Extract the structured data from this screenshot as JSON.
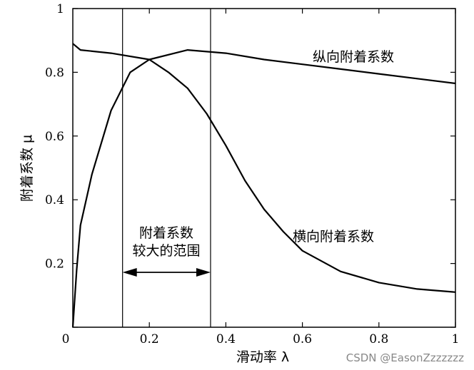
{
  "chart_data": {
    "type": "line",
    "xlabel": "滑动率 λ",
    "ylabel": "附着系数 μ",
    "xlim": [
      0,
      1
    ],
    "ylim": [
      0,
      1
    ],
    "x_ticks": [
      {
        "value": 0.2,
        "label": "0.2"
      },
      {
        "value": 0.4,
        "label": "0.4"
      },
      {
        "value": 0.6,
        "label": "0.6"
      },
      {
        "value": 0.8,
        "label": "0.8"
      },
      {
        "value": 1.0,
        "label": "1"
      }
    ],
    "y_ticks": [
      {
        "value": 0,
        "label": "0"
      },
      {
        "value": 0.2,
        "label": "0.2"
      },
      {
        "value": 0.4,
        "label": "0.4"
      },
      {
        "value": 0.6,
        "label": "0.6"
      },
      {
        "value": 0.8,
        "label": "0.8"
      },
      {
        "value": 1.0,
        "label": "1"
      }
    ],
    "series": [
      {
        "name": "纵向附着系数",
        "x": [
          0,
          0.01,
          0.02,
          0.05,
          0.1,
          0.15,
          0.2,
          0.3,
          0.4,
          0.5,
          0.6,
          0.7,
          0.8,
          0.9,
          1.0
        ],
        "y": [
          0.0,
          0.18,
          0.32,
          0.48,
          0.68,
          0.8,
          0.84,
          0.87,
          0.86,
          0.84,
          0.825,
          0.81,
          0.795,
          0.78,
          0.765
        ]
      },
      {
        "name": "横向附着系数",
        "x": [
          0,
          0.02,
          0.1,
          0.2,
          0.25,
          0.3,
          0.35,
          0.4,
          0.45,
          0.5,
          0.55,
          0.6,
          0.7,
          0.8,
          0.9,
          1.0
        ],
        "y": [
          0.89,
          0.87,
          0.86,
          0.84,
          0.8,
          0.75,
          0.67,
          0.57,
          0.46,
          0.37,
          0.3,
          0.24,
          0.175,
          0.14,
          0.12,
          0.11
        ]
      }
    ],
    "region": {
      "x_start": 0.13,
      "x_end": 0.36,
      "label_lines": [
        "附着系数",
        "较大的范围"
      ]
    },
    "grid": false
  },
  "watermark": "CSDN @EasonZzzzzzz"
}
